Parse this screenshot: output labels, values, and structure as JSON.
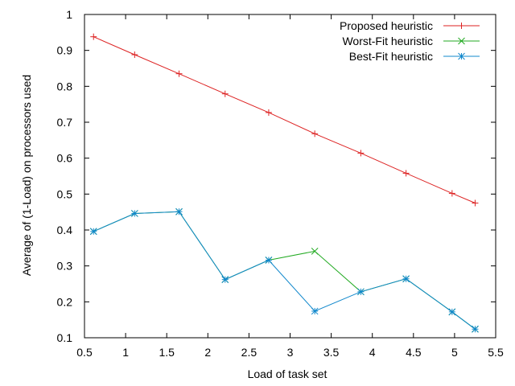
{
  "chart_data": {
    "type": "line",
    "title": "",
    "xlabel": "Load of task set",
    "ylabel": "Average of (1-Load) on processors used",
    "xlim": [
      0.5,
      5.5
    ],
    "ylim": [
      0.1,
      1.0
    ],
    "xticks": [
      0.5,
      1,
      1.5,
      2,
      2.5,
      3,
      3.5,
      4,
      4.5,
      5,
      5.5
    ],
    "xtick_labels": [
      "0.5",
      "1",
      "1.5",
      "2",
      "2.5",
      "3",
      "3.5",
      "4",
      "4.5",
      "5",
      "5.5"
    ],
    "yticks": [
      0.1,
      0.2,
      0.3,
      0.4,
      0.5,
      0.6,
      0.7,
      0.8,
      0.9,
      1.0
    ],
    "ytick_labels": [
      "0.1",
      "0.2",
      "0.3",
      "0.4",
      "0.5",
      "0.6",
      "0.7",
      "0.8",
      "0.9",
      "1"
    ],
    "grid": false,
    "legend_position": "top-right",
    "series": [
      {
        "name": "Proposed heuristic",
        "color": "#dd2222",
        "marker": "plus",
        "x": [
          0.61,
          1.11,
          1.65,
          2.21,
          2.74,
          3.3,
          3.86,
          4.41,
          4.97,
          5.25
        ],
        "y": [
          0.938,
          0.888,
          0.835,
          0.779,
          0.727,
          0.668,
          0.614,
          0.558,
          0.502,
          0.475
        ]
      },
      {
        "name": "Worst-Fit heuristic",
        "color": "#22aa22",
        "marker": "x",
        "x": [
          0.61,
          1.11,
          1.65,
          2.21,
          2.74,
          3.3,
          3.86,
          4.41,
          4.97,
          5.25
        ],
        "y": [
          0.396,
          0.446,
          0.451,
          0.262,
          0.316,
          0.341,
          0.228,
          0.264,
          0.172,
          0.124
        ]
      },
      {
        "name": "Best-Fit heuristic",
        "color": "#1188cc",
        "marker": "star",
        "x": [
          0.61,
          1.11,
          1.65,
          2.21,
          2.74,
          3.3,
          3.86,
          4.41,
          4.97,
          5.25
        ],
        "y": [
          0.396,
          0.446,
          0.451,
          0.262,
          0.316,
          0.174,
          0.228,
          0.264,
          0.172,
          0.124
        ]
      }
    ]
  }
}
